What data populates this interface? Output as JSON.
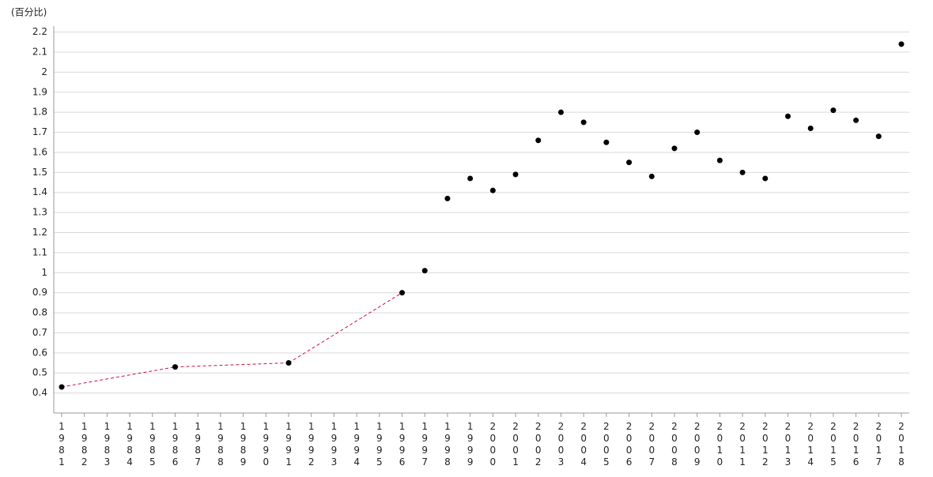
{
  "chart_data": {
    "type": "line",
    "y_label": "(百分比)",
    "categories": [
      "1981",
      "1982",
      "1983",
      "1984",
      "1985",
      "1986",
      "1987",
      "1988",
      "1989",
      "1990",
      "1991",
      "1992",
      "1993",
      "1994",
      "1995",
      "1996",
      "1997",
      "1998",
      "1999",
      "2000",
      "2001",
      "2002",
      "2003",
      "2004",
      "2005",
      "2006",
      "2007",
      "2008",
      "2009",
      "2010",
      "2011",
      "2012",
      "2013",
      "2014",
      "2015",
      "2016",
      "2017",
      "2018"
    ],
    "series": [
      {
        "color": "#d0103a",
        "marker_color": "#000000",
        "values": [
          0.43,
          null,
          null,
          null,
          null,
          0.53,
          null,
          null,
          null,
          null,
          0.55,
          null,
          null,
          null,
          null,
          0.9,
          1.01,
          1.37,
          1.47,
          1.41,
          1.49,
          1.66,
          1.8,
          1.75,
          1.65,
          1.55,
          1.48,
          1.62,
          1.7,
          1.56,
          1.5,
          1.47,
          1.78,
          1.72,
          1.81,
          1.76,
          1.68,
          2.14
        ]
      }
    ],
    "ylim": [
      0.3,
      2.23
    ],
    "yticks": [
      0.4,
      0.5,
      0.6,
      0.7,
      0.8,
      0.9,
      1,
      1.1,
      1.2,
      1.3,
      1.4,
      1.5,
      1.6,
      1.7,
      1.8,
      1.9,
      2,
      2.1,
      2.2
    ],
    "grid": true,
    "gap_style": "dashed"
  }
}
